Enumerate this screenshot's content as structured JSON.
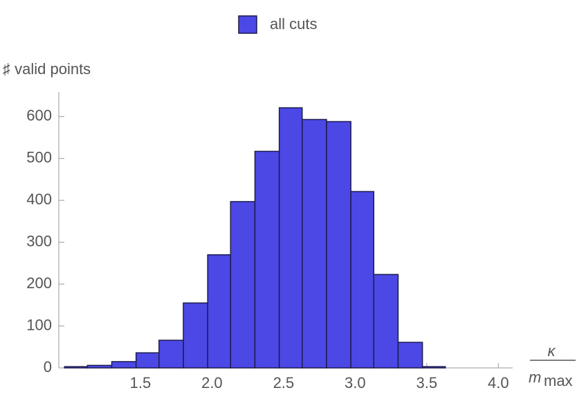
{
  "chart_data": {
    "type": "histogram",
    "y_label": "♯ valid points",
    "x_label": {
      "numerator": "κ",
      "denominator": "m",
      "denominator_subscript": "max"
    },
    "bins": [
      0.97,
      1.13,
      1.3,
      1.47,
      1.63,
      1.8,
      1.97,
      2.13,
      2.3,
      2.47,
      2.63,
      2.8,
      2.97,
      3.13,
      3.3,
      3.47,
      3.63
    ],
    "series": [
      {
        "name": "all cuts",
        "color": "#4b48e6",
        "values": [
          3,
          6,
          15,
          36,
          66,
          155,
          270,
          397,
          517,
          621,
          593,
          588,
          421,
          223,
          61,
          3
        ]
      }
    ],
    "xlim": [
      0.94,
      4.1
    ],
    "xticks": [
      {
        "value": 1.5,
        "label": "1.5"
      },
      {
        "value": 2.0,
        "label": "2.0"
      },
      {
        "value": 2.5,
        "label": "2.5"
      },
      {
        "value": 3.0,
        "label": "3.0"
      },
      {
        "value": 3.5,
        "label": "3.5"
      },
      {
        "value": 4.0,
        "label": "4.0"
      }
    ],
    "ylim": [
      0,
      650
    ],
    "yticks": [
      0,
      100,
      200,
      300,
      400,
      500,
      600
    ],
    "legend": "top"
  }
}
